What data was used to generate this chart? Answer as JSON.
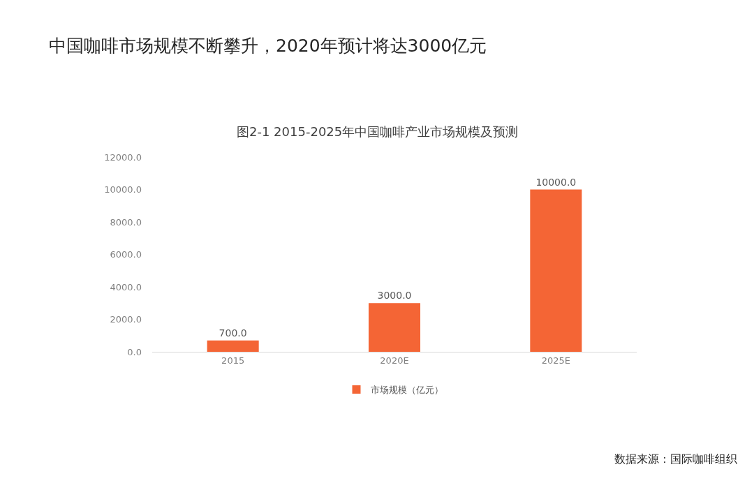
{
  "chart_data": {
    "type": "bar",
    "title": "中国咖啡市场规模不断攀升，2020年预计将达3000亿元",
    "subtitle": "图2-1 2015-2025年中国咖啡产业市场规模及预测",
    "annotations": [
      "数据来源：国际咖啡组织"
    ],
    "categories": [
      "2015",
      "2020E",
      "2025E"
    ],
    "series": [
      {
        "name": "市场规模（亿元）",
        "color": "#f46535",
        "values": [
          700,
          3000,
          10000
        ],
        "value_labels": [
          "700.0",
          "3000.0",
          "10000.0"
        ]
      }
    ],
    "ylim": [
      0,
      12000
    ],
    "yticks": [
      {
        "value": 0,
        "label": "0.0"
      },
      {
        "value": 2000,
        "label": "2000.0"
      },
      {
        "value": 4000,
        "label": "4000.0"
      },
      {
        "value": 6000,
        "label": "6000.0"
      },
      {
        "value": 8000,
        "label": "8000.0"
      },
      {
        "value": 10000,
        "label": "10000.0"
      },
      {
        "value": 12000,
        "label": "12000.0"
      }
    ],
    "grid": false,
    "legend": "bottom"
  }
}
